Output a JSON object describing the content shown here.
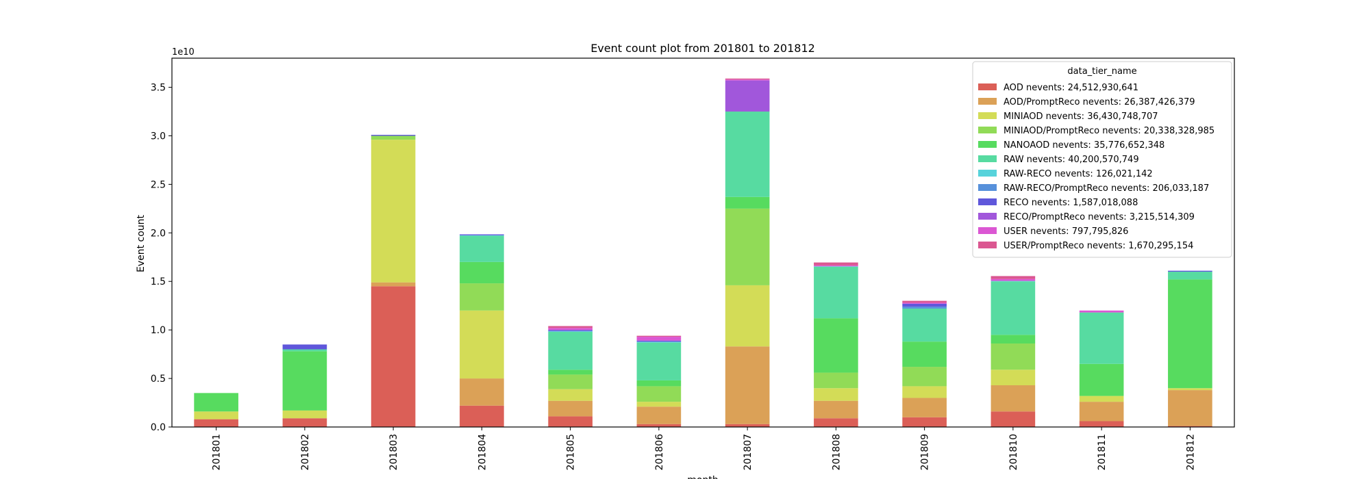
{
  "chart_data": {
    "type": "bar",
    "stacked": true,
    "title": "Event count plot from 201801 to 201812",
    "xlabel": "month",
    "ylabel": "Event count",
    "scale_label": "1e10",
    "ylim": [
      0,
      3.8
    ],
    "yticks": [
      0.0,
      0.5,
      1.0,
      1.5,
      2.0,
      2.5,
      3.0,
      3.5
    ],
    "ytick_labels": [
      "0.0",
      "0.5",
      "1.0",
      "1.5",
      "2.0",
      "2.5",
      "3.0",
      "3.5"
    ],
    "legend_title": "data_tier_name",
    "legend_position": "upper-right",
    "categories": [
      "201801",
      "201802",
      "201803",
      "201804",
      "201805",
      "201806",
      "201807",
      "201808",
      "201809",
      "201810",
      "201811",
      "201812"
    ],
    "series": [
      {
        "name": "AOD",
        "label": "AOD nevents: 24,512,930,641",
        "color": "#db5f57",
        "values": [
          0.08,
          0.09,
          1.45,
          0.22,
          0.11,
          0.03,
          0.03,
          0.09,
          0.1,
          0.16,
          0.06,
          0.01
        ]
      },
      {
        "name": "AOD/PromptReco",
        "label": "AOD/PromptReco nevents: 26,387,426,379",
        "color": "#dba157",
        "values": [
          0.0,
          0.0,
          0.04,
          0.28,
          0.16,
          0.18,
          0.8,
          0.18,
          0.2,
          0.27,
          0.2,
          0.37
        ]
      },
      {
        "name": "MINIAOD",
        "label": "MINIAOD nevents: 36,430,748,707",
        "color": "#d3dc57",
        "values": [
          0.08,
          0.08,
          1.47,
          0.7,
          0.12,
          0.05,
          0.63,
          0.13,
          0.12,
          0.16,
          0.06,
          0.02
        ]
      },
      {
        "name": "MINIAOD/PromptReco",
        "label": "MINIAOD/PromptReco nevents: 20,338,328,985",
        "color": "#91db57",
        "values": [
          0.0,
          0.0,
          0.04,
          0.28,
          0.15,
          0.16,
          0.79,
          0.16,
          0.2,
          0.27,
          0.0,
          0.0
        ]
      },
      {
        "name": "NANOAOD",
        "label": "NANOAOD nevents: 35,776,652,348",
        "color": "#57db5f",
        "values": [
          0.19,
          0.61,
          0.0,
          0.22,
          0.05,
          0.06,
          0.12,
          0.56,
          0.26,
          0.09,
          0.33,
          1.12
        ]
      },
      {
        "name": "RAW",
        "label": "RAW nevents: 40,200,570,749",
        "color": "#57dba1",
        "values": [
          0.0,
          0.02,
          0.0,
          0.27,
          0.39,
          0.39,
          0.88,
          0.53,
          0.34,
          0.55,
          0.53,
          0.08
        ]
      },
      {
        "name": "RAW-RECO",
        "label": "RAW-RECO nevents: 126,021,142",
        "color": "#57d3db",
        "values": [
          0.0,
          0.0,
          0.0,
          0.005,
          0.005,
          0.005,
          0.0,
          0.005,
          0.0,
          0.005,
          0.0,
          0.0
        ]
      },
      {
        "name": "RAW-RECO/PromptReco",
        "label": "RAW-RECO/PromptReco nevents: 206,033,187",
        "color": "#5791db",
        "values": [
          0.0,
          0.0,
          0.0,
          0.0,
          0.005,
          0.005,
          0.0,
          0.0,
          0.02,
          0.0,
          0.0,
          0.0
        ]
      },
      {
        "name": "RECO",
        "label": "RECO nevents: 1,587,018,088",
        "color": "#5f57db",
        "values": [
          0.0,
          0.05,
          0.01,
          0.01,
          0.01,
          0.01,
          0.0,
          0.0,
          0.03,
          0.0,
          0.0,
          0.01
        ]
      },
      {
        "name": "RECO/PromptReco",
        "label": "RECO/PromptReco nevents: 3,215,514,309",
        "color": "#a157db",
        "values": [
          0.0,
          0.0,
          0.0,
          0.0,
          0.0,
          0.0,
          0.32,
          0.0,
          0.0,
          0.0,
          0.0,
          0.0
        ]
      },
      {
        "name": "USER",
        "label": "USER nevents: 797,795,826",
        "color": "#db57d3",
        "values": [
          0.0,
          0.0,
          0.0,
          0.0,
          0.02,
          0.04,
          0.01,
          0.01,
          0.01,
          0.02,
          0.02,
          0.0
        ]
      },
      {
        "name": "USER/PromptReco",
        "label": "USER/PromptReco nevents: 1,670,295,154",
        "color": "#db5791",
        "values": [
          0.0,
          0.0,
          0.0,
          0.0,
          0.02,
          0.01,
          0.01,
          0.03,
          0.02,
          0.03,
          0.0,
          0.0
        ]
      }
    ]
  }
}
